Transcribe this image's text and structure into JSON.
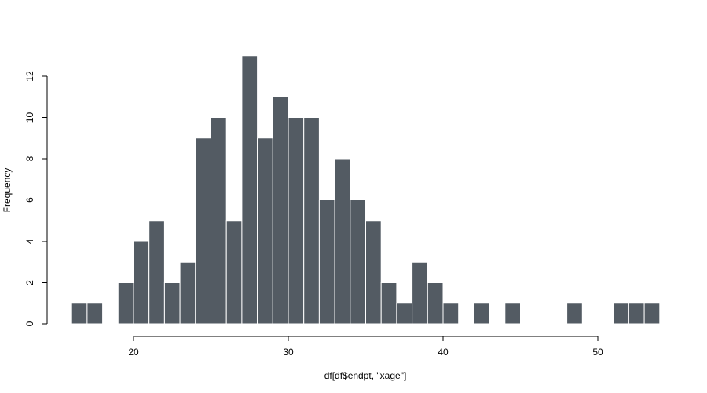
{
  "chart_data": {
    "type": "bar",
    "subtype": "histogram",
    "title": "",
    "xlabel": "df[df$endpt, \"xage\"]",
    "ylabel": "Frequency",
    "bin_width": 1,
    "bins": [
      {
        "start": 16,
        "end": 17,
        "count": 1
      },
      {
        "start": 17,
        "end": 18,
        "count": 1
      },
      {
        "start": 18,
        "end": 19,
        "count": 0
      },
      {
        "start": 19,
        "end": 20,
        "count": 2
      },
      {
        "start": 20,
        "end": 21,
        "count": 4
      },
      {
        "start": 21,
        "end": 22,
        "count": 5
      },
      {
        "start": 22,
        "end": 23,
        "count": 2
      },
      {
        "start": 23,
        "end": 24,
        "count": 3
      },
      {
        "start": 24,
        "end": 25,
        "count": 9
      },
      {
        "start": 25,
        "end": 26,
        "count": 10
      },
      {
        "start": 26,
        "end": 27,
        "count": 5
      },
      {
        "start": 27,
        "end": 28,
        "count": 13
      },
      {
        "start": 28,
        "end": 29,
        "count": 9
      },
      {
        "start": 29,
        "end": 30,
        "count": 11
      },
      {
        "start": 30,
        "end": 31,
        "count": 10
      },
      {
        "start": 31,
        "end": 32,
        "count": 10
      },
      {
        "start": 32,
        "end": 33,
        "count": 6
      },
      {
        "start": 33,
        "end": 34,
        "count": 8
      },
      {
        "start": 34,
        "end": 35,
        "count": 6
      },
      {
        "start": 35,
        "end": 36,
        "count": 5
      },
      {
        "start": 36,
        "end": 37,
        "count": 2
      },
      {
        "start": 37,
        "end": 38,
        "count": 1
      },
      {
        "start": 38,
        "end": 39,
        "count": 3
      },
      {
        "start": 39,
        "end": 40,
        "count": 2
      },
      {
        "start": 40,
        "end": 41,
        "count": 1
      },
      {
        "start": 41,
        "end": 42,
        "count": 0
      },
      {
        "start": 42,
        "end": 43,
        "count": 1
      },
      {
        "start": 43,
        "end": 44,
        "count": 0
      },
      {
        "start": 44,
        "end": 45,
        "count": 1
      },
      {
        "start": 45,
        "end": 46,
        "count": 0
      },
      {
        "start": 46,
        "end": 47,
        "count": 0
      },
      {
        "start": 47,
        "end": 48,
        "count": 0
      },
      {
        "start": 48,
        "end": 49,
        "count": 1
      },
      {
        "start": 49,
        "end": 50,
        "count": 0
      },
      {
        "start": 50,
        "end": 51,
        "count": 0
      },
      {
        "start": 51,
        "end": 52,
        "count": 1
      },
      {
        "start": 52,
        "end": 53,
        "count": 1
      },
      {
        "start": 53,
        "end": 54,
        "count": 1
      }
    ],
    "xticks": [
      20,
      30,
      40,
      50
    ],
    "yticks": [
      0,
      2,
      4,
      6,
      8,
      10,
      12
    ],
    "xlim": [
      16,
      54
    ],
    "ylim": [
      0,
      13
    ],
    "bar_color": "#535b63",
    "bar_border_color": "#ffffff",
    "grid": false,
    "legend": "none"
  }
}
